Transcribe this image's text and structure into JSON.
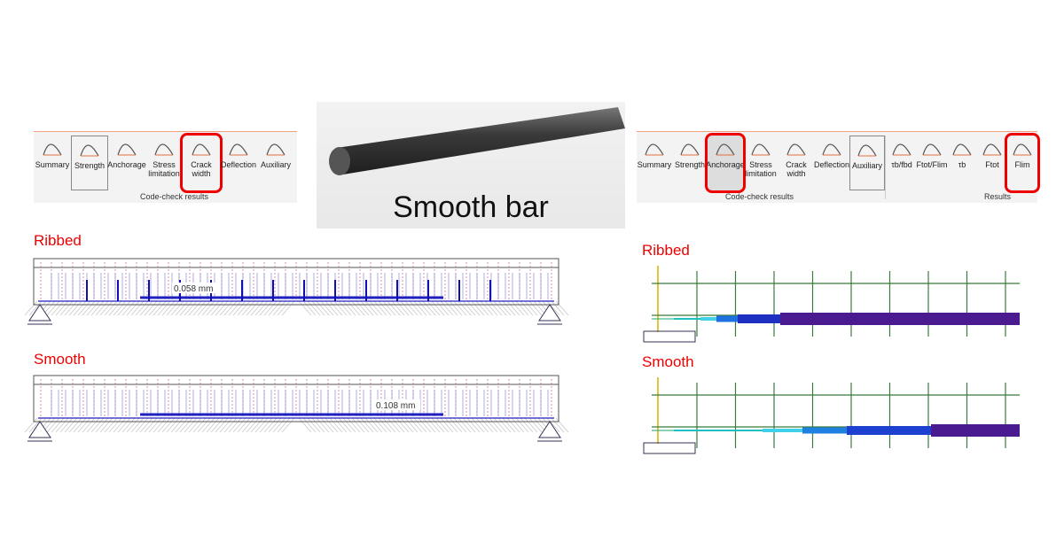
{
  "left_toolbar": {
    "buttons": [
      "Summary",
      "Strength",
      "Anchorage",
      "Stress limitation",
      "Crack width",
      "Deflection",
      "Auxiliary"
    ],
    "group": "Code-check results"
  },
  "photo": {
    "caption": "Smooth bar"
  },
  "left_panel": {
    "ribbed": {
      "label": "Ribbed",
      "crack_label": "0.058 mm"
    },
    "smooth": {
      "label": "Smooth",
      "crack_label": "0.108 mm"
    }
  },
  "right_toolbar": {
    "buttons": [
      "Summary",
      "Strength",
      "Anchorage",
      "Stress limitation",
      "Crack width",
      "Deflection",
      "Auxiliary"
    ],
    "results_buttons": [
      "τb/fbd",
      "Ftot/Flim",
      "τb",
      "Ftot",
      "Flim"
    ],
    "groups": [
      "Code-check results",
      "Results"
    ]
  },
  "right_panel": {
    "ribbed": "Ribbed",
    "smooth": "Smooth"
  }
}
